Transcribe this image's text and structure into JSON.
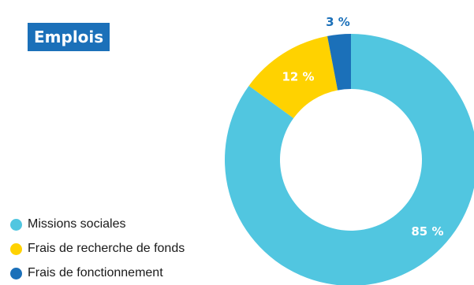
{
  "chart_data": {
    "type": "pie",
    "title": "Emplois",
    "categories": [
      "Missions sociales",
      "Frais de recherche de fonds",
      "Frais de fonctionnement"
    ],
    "values": [
      85,
      12,
      3
    ],
    "labels": [
      "85 %",
      "12 %",
      "3 %"
    ],
    "colors": [
      "#51c6e0",
      "#ffd200",
      "#1b70b9"
    ],
    "legend": "bottom-left",
    "grid": false
  },
  "colors": {
    "title_background": "#1b70b9",
    "title_text": "#ffffff",
    "inner_label_text": "#ffffff",
    "outer_label_text": "#1b70b9"
  }
}
